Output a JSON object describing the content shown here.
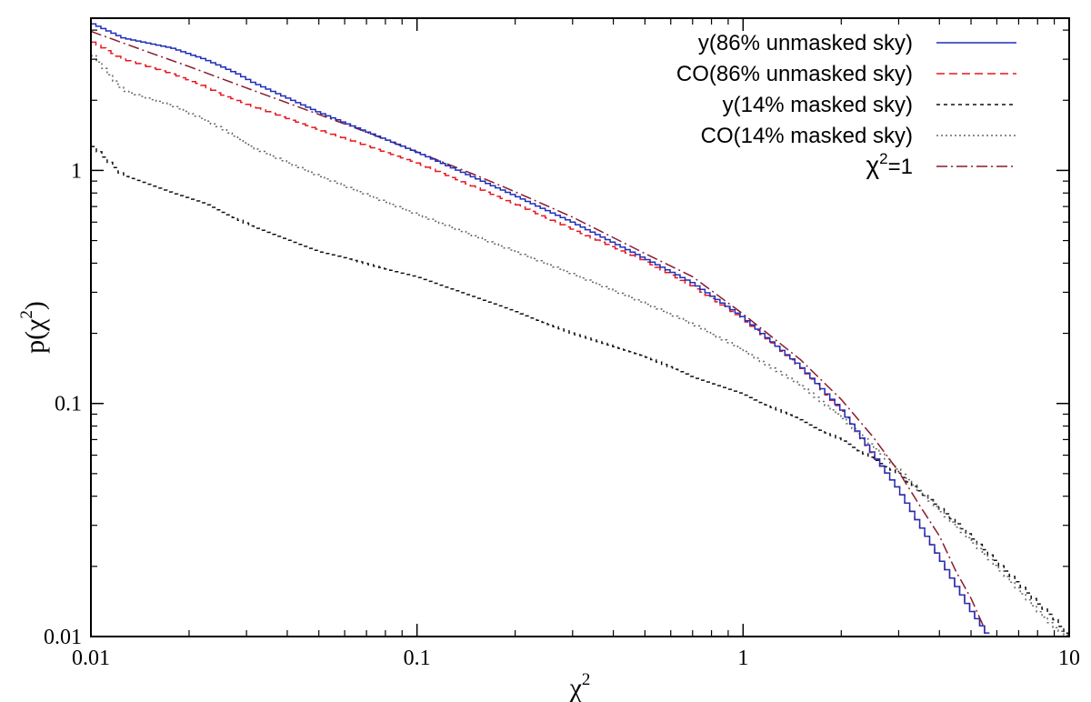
{
  "chart_data": {
    "type": "line",
    "x_scale": "log",
    "y_scale": "log",
    "xlim": [
      0.01,
      10
    ],
    "ylim": [
      0.01,
      4.5
    ],
    "x_ticks": [
      {
        "value": 0.01,
        "label": "0.01"
      },
      {
        "value": 0.1,
        "label": "0.1"
      },
      {
        "value": 1,
        "label": "1"
      },
      {
        "value": 10,
        "label": "10"
      }
    ],
    "y_ticks": [
      {
        "value": 0.01,
        "label": "0.01"
      },
      {
        "value": 0.1,
        "label": "0.1"
      },
      {
        "value": 1,
        "label": "1"
      }
    ],
    "xlabel": {
      "base": "χ",
      "sup": "2"
    },
    "ylabel": {
      "prefix": "p(",
      "base": "χ",
      "sup": "2",
      "suffix": ")"
    },
    "legend_position": "top-right",
    "colors": {
      "y_unmasked": "#1f2fb8",
      "co_unmasked": "#e8161e",
      "y_masked": "#111111",
      "co_masked": "#666666",
      "chi2": "#8b1a2b"
    },
    "series": [
      {
        "key": "y_unmasked",
        "name": "y(86% unmasked sky)",
        "style": "solid",
        "render": "step",
        "x": [
          0.01,
          0.0126,
          0.0178,
          0.0224,
          0.0251,
          0.0282,
          0.0316,
          0.05,
          0.1,
          0.2,
          0.3,
          0.5,
          0.7,
          1.0,
          1.5,
          2.0,
          3.0,
          4.0,
          5.0,
          5.7
        ],
        "values": [
          4.3,
          3.7,
          3.35,
          3.0,
          2.8,
          2.6,
          2.38,
          1.78,
          1.2,
          0.78,
          0.6,
          0.42,
          0.33,
          0.235,
          0.145,
          0.095,
          0.043,
          0.022,
          0.013,
          0.01
        ]
      },
      {
        "key": "co_unmasked",
        "name": "CO(86% unmasked sky)",
        "style": "dashed",
        "render": "step",
        "x": [
          0.01,
          0.0126,
          0.0178,
          0.0224,
          0.0251,
          0.0282,
          0.0316,
          0.05,
          0.1,
          0.2,
          0.3,
          0.5,
          0.7,
          1.0,
          1.5,
          2.0,
          3.0,
          4.0,
          5.0,
          5.7
        ],
        "values": [
          3.6,
          3.0,
          2.6,
          2.3,
          2.12,
          2.0,
          1.88,
          1.5,
          1.08,
          0.72,
          0.56,
          0.41,
          0.32,
          0.232,
          0.144,
          0.094,
          0.043,
          0.022,
          0.013,
          0.01
        ]
      },
      {
        "key": "y_masked",
        "name": "y(14% masked sky)",
        "style": "short-dashed",
        "render": "step",
        "x": [
          0.01,
          0.0126,
          0.0178,
          0.0224,
          0.0251,
          0.0282,
          0.0316,
          0.05,
          0.1,
          0.2,
          0.3,
          0.5,
          0.7,
          1.0,
          1.5,
          2.0,
          3.0,
          4.0,
          5.0,
          6.0,
          7.0,
          8.0,
          9.0,
          10.0
        ],
        "values": [
          1.3,
          0.95,
          0.8,
          0.72,
          0.67,
          0.62,
          0.57,
          0.45,
          0.35,
          0.25,
          0.2,
          0.16,
          0.13,
          0.11,
          0.085,
          0.07,
          0.05,
          0.036,
          0.027,
          0.021,
          0.017,
          0.014,
          0.012,
          0.01
        ]
      },
      {
        "key": "co_masked",
        "name": "CO(14% masked sky)",
        "style": "dotted",
        "render": "step",
        "x": [
          0.01,
          0.0126,
          0.0178,
          0.0224,
          0.0251,
          0.0282,
          0.0316,
          0.05,
          0.1,
          0.2,
          0.3,
          0.5,
          0.7,
          1.0,
          1.5,
          2.0,
          3.0,
          4.0,
          5.0,
          6.0,
          7.0,
          8.0,
          9.0,
          10.0
        ],
        "values": [
          3.2,
          2.2,
          1.9,
          1.65,
          1.52,
          1.38,
          1.25,
          0.95,
          0.65,
          0.45,
          0.36,
          0.27,
          0.22,
          0.17,
          0.12,
          0.088,
          0.052,
          0.035,
          0.026,
          0.02,
          0.016,
          0.013,
          0.011,
          0.01
        ]
      },
      {
        "key": "chi2",
        "name": "χ²=1",
        "legend": {
          "base": "χ",
          "sup": "2",
          "suffix": "=1"
        },
        "style": "dash-dot",
        "render": "line",
        "x": [
          0.01,
          0.015,
          0.02,
          0.03,
          0.05,
          0.07,
          0.1,
          0.15,
          0.2,
          0.3,
          0.5,
          0.7,
          1.0,
          1.5,
          2.0,
          2.5,
          3.0,
          3.5,
          4.0,
          4.5,
          5.0,
          5.5
        ],
        "values": [
          3.95,
          3.22,
          2.79,
          2.26,
          1.74,
          1.46,
          1.2,
          0.96,
          0.81,
          0.63,
          0.44,
          0.35,
          0.242,
          0.154,
          0.104,
          0.072,
          0.051,
          0.036,
          0.027,
          0.019,
          0.0146,
          0.0108
        ]
      }
    ]
  }
}
